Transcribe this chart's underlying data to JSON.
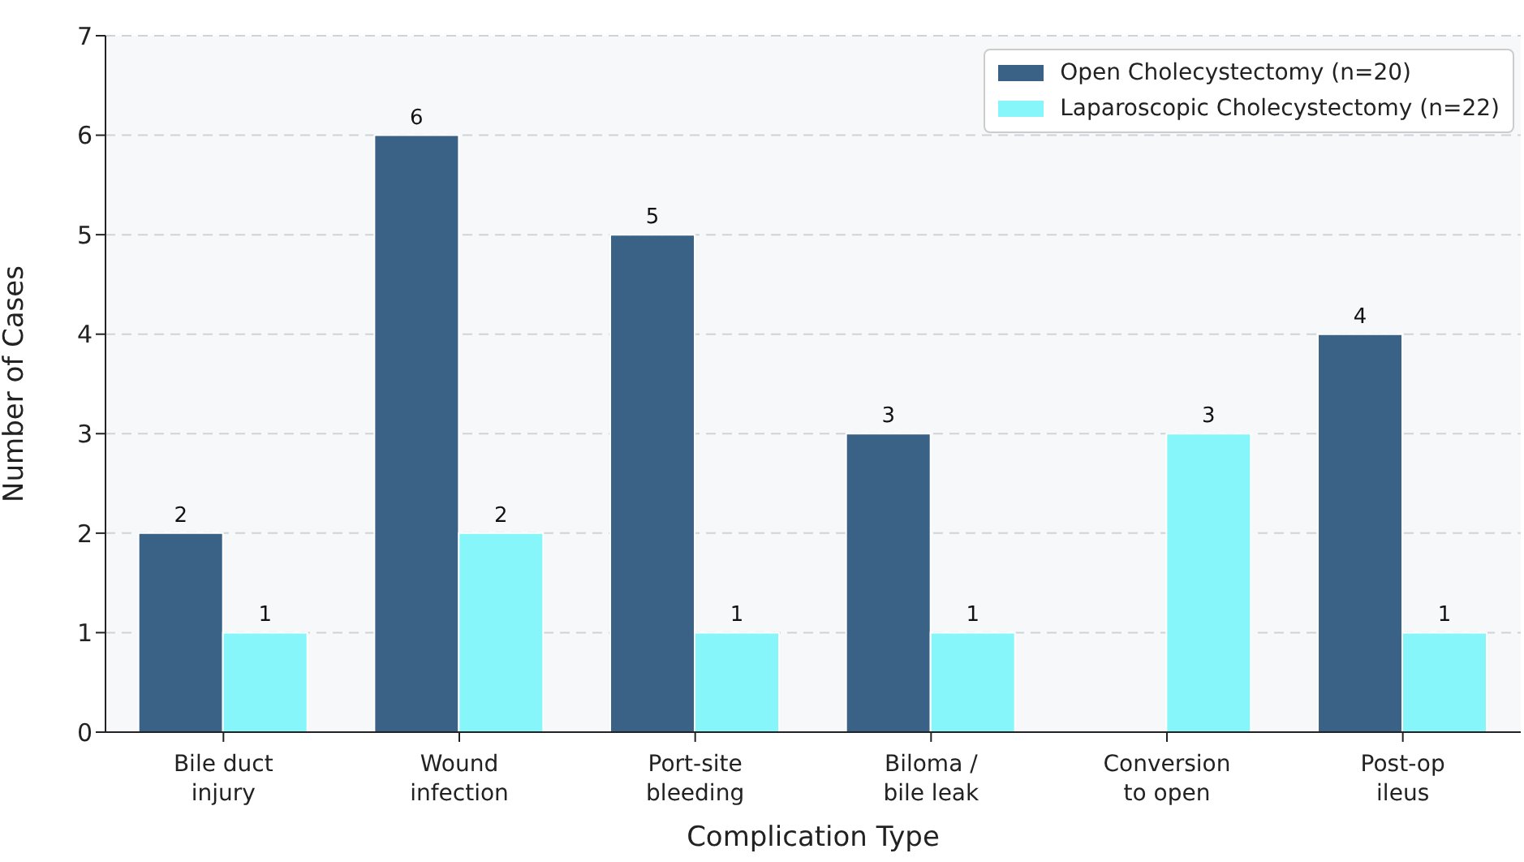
{
  "chart_data": {
    "type": "bar",
    "xlabel": "Complication Type",
    "ylabel": "Number of Cases",
    "categories": [
      "Bile duct\ninjury",
      "Wound\ninfection",
      "Port-site\nbleeding",
      "Biloma /\nbile leak",
      "Conversion\nto open",
      "Post-op\nileus"
    ],
    "series": [
      {
        "name": "Open Cholecystectomy (n=20)",
        "color": "#3a6186",
        "values": [
          2,
          6,
          5,
          3,
          0,
          4
        ],
        "value_labels": [
          "2",
          "6",
          "5",
          "3",
          null,
          "4"
        ]
      },
      {
        "name": "Laparoscopic Cholecystectomy (n=22)",
        "color": "#87f6fb",
        "values": [
          1,
          2,
          1,
          1,
          3,
          1
        ],
        "value_labels": [
          "1",
          "2",
          "1",
          "1",
          "3",
          "1"
        ]
      }
    ],
    "ylim": [
      0,
      7
    ],
    "yticks": [
      0,
      1,
      2,
      3,
      4,
      5,
      6,
      7
    ],
    "grid": "y",
    "legend": "top right"
  }
}
